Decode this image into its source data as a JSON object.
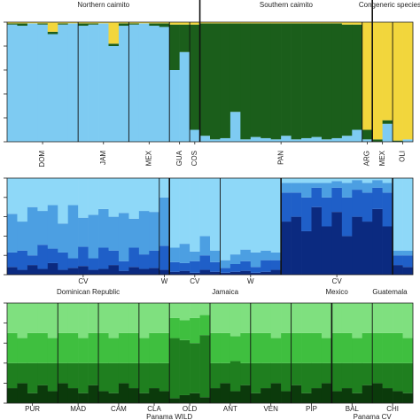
{
  "chart_data": [
    {
      "type": "bar",
      "stacked": true,
      "ylim": [
        0,
        1
      ],
      "yticks": [
        0,
        0.2,
        0.4,
        0.6,
        0.8,
        1
      ],
      "categories": [
        "DOM",
        "DOM",
        "DOM",
        "DOM",
        "DOM",
        "DOM",
        "DOM",
        "JAM",
        "JAM",
        "JAM",
        "JAM",
        "JAM",
        "MEX",
        "MEX",
        "MEX",
        "MEX",
        "GUA",
        "GUA",
        "COS",
        "PAN",
        "PAN",
        "PAN",
        "PAN",
        "PAN",
        "PAN",
        "PAN",
        "PAN",
        "PAN",
        "PAN",
        "PAN",
        "PAN",
        "PAN",
        "PAN",
        "PAN",
        "PAN",
        "ARG",
        "MEX",
        "MEX",
        "OLI",
        "OLI"
      ],
      "groups": [
        "Northern caimito",
        "Northern caimito",
        "Northern caimito",
        "Northern caimito",
        "Northern caimito",
        "Northern caimito",
        "Northern caimito",
        "Northern caimito",
        "Northern caimito",
        "Northern caimito",
        "Northern caimito",
        "Northern caimito",
        "Northern caimito",
        "Northern caimito",
        "Northern caimito",
        "Northern caimito",
        "Northern caimito",
        "Northern caimito",
        "Northern caimito",
        "Southern caimito",
        "Southern caimito",
        "Southern caimito",
        "Southern caimito",
        "Southern caimito",
        "Southern caimito",
        "Southern caimito",
        "Southern caimito",
        "Southern caimito",
        "Southern caimito",
        "Southern caimito",
        "Southern caimito",
        "Southern caimito",
        "Southern caimito",
        "Southern caimito",
        "Southern caimito",
        "Southern caimito",
        "Congeneric species",
        "Congeneric species",
        "Congeneric species",
        "Congeneric species"
      ],
      "series": [
        {
          "color": "#7ecbf2",
          "values": [
            0.98,
            0.97,
            0.99,
            0.98,
            0.9,
            0.98,
            0.99,
            0.97,
            0.98,
            0.99,
            0.8,
            0.97,
            0.98,
            0.99,
            0.97,
            0.96,
            0.6,
            0.75,
            0.1,
            0.05,
            0.02,
            0.03,
            0.25,
            0.02,
            0.04,
            0.03,
            0.02,
            0.05,
            0.02,
            0.03,
            0.04,
            0.02,
            0.03,
            0.05,
            0.1,
            0.02,
            0,
            0.15,
            0,
            0.02
          ]
        },
        {
          "color": "#1b5e1b",
          "values": [
            0.01,
            0.02,
            0,
            0.01,
            0.02,
            0.01,
            0,
            0.02,
            0.01,
            0,
            0.02,
            0.02,
            0.01,
            0,
            0.02,
            0.03,
            0.38,
            0.23,
            0.88,
            0.94,
            0.97,
            0.96,
            0.74,
            0.97,
            0.95,
            0.96,
            0.97,
            0.94,
            0.97,
            0.96,
            0.95,
            0.97,
            0.96,
            0.93,
            0.88,
            0.08,
            0.02,
            0.03,
            0.01,
            0
          ]
        },
        {
          "color": "#f2d63c",
          "values": [
            0.01,
            0.01,
            0.01,
            0.01,
            0.08,
            0.01,
            0.01,
            0.01,
            0.01,
            0.01,
            0.18,
            0.01,
            0.01,
            0.01,
            0.01,
            0.01,
            0.02,
            0.02,
            0.02,
            0.01,
            0.01,
            0.01,
            0.01,
            0.01,
            0.01,
            0.01,
            0.01,
            0.01,
            0.01,
            0.01,
            0.01,
            0.01,
            0.01,
            0.02,
            0.02,
            0.9,
            0.98,
            0.82,
            0.99,
            0.98
          ]
        }
      ]
    },
    {
      "type": "bar",
      "stacked": true,
      "ylim": [
        0,
        1
      ],
      "yticks": [
        0,
        0.2,
        0.4,
        0.6,
        0.8,
        1
      ],
      "categories": [
        "CV",
        "CV",
        "CV",
        "CV",
        "CV",
        "CV",
        "CV",
        "CV",
        "CV",
        "CV",
        "CV",
        "CV",
        "CV",
        "CV",
        "CV",
        "W",
        "CV",
        "CV",
        "CV",
        "CV",
        "CV",
        "W",
        "W",
        "W",
        "W",
        "W",
        "W",
        "CV",
        "CV",
        "CV",
        "CV",
        "CV",
        "CV",
        "CV",
        "CV",
        "CV",
        "CV",
        "CV",
        null,
        null
      ],
      "groups": [
        "Dominican Republic",
        "Dominican Republic",
        "Dominican Republic",
        "Dominican Republic",
        "Dominican Republic",
        "Dominican Republic",
        "Dominican Republic",
        "Dominican Republic",
        "Dominican Republic",
        "Dominican Republic",
        "Dominican Republic",
        "Dominican Republic",
        "Dominican Republic",
        "Dominican Republic",
        "Dominican Republic",
        "Dominican Republic",
        "Jamaica",
        "Jamaica",
        "Jamaica",
        "Jamaica",
        "Jamaica",
        "Jamaica",
        "Jamaica",
        "Jamaica",
        "Jamaica",
        "Jamaica",
        "Jamaica",
        "Mexico",
        "Mexico",
        "Mexico",
        "Mexico",
        "Mexico",
        "Mexico",
        "Mexico",
        "Mexico",
        "Mexico",
        "Mexico",
        "Mexico",
        "Guatemala",
        "Guatemala"
      ],
      "series": [
        {
          "color": "#0b2a80",
          "values": [
            0.08,
            0.05,
            0.1,
            0.06,
            0.12,
            0.05,
            0.07,
            0.09,
            0.05,
            0.06,
            0.1,
            0.04,
            0.08,
            0.06,
            0.07,
            0.05,
            0.03,
            0.04,
            0.02,
            0.05,
            0.03,
            0.02,
            0.03,
            0.04,
            0.02,
            0.03,
            0.05,
            0.55,
            0.6,
            0.45,
            0.7,
            0.5,
            0.65,
            0.4,
            0.6,
            0.55,
            0.68,
            0.5,
            0.1,
            0.08
          ]
        },
        {
          "color": "#1f5fc8",
          "values": [
            0.15,
            0.2,
            0.1,
            0.25,
            0.15,
            0.18,
            0.1,
            0.2,
            0.12,
            0.22,
            0.15,
            0.1,
            0.2,
            0.15,
            0.18,
            0.25,
            0.1,
            0.08,
            0.12,
            0.15,
            0.1,
            0.05,
            0.08,
            0.1,
            0.06,
            0.12,
            0.1,
            0.3,
            0.25,
            0.35,
            0.2,
            0.3,
            0.25,
            0.4,
            0.28,
            0.3,
            0.22,
            0.35,
            0.1,
            0.12
          ]
        },
        {
          "color": "#4c9fe2",
          "values": [
            0.4,
            0.3,
            0.5,
            0.35,
            0.45,
            0.3,
            0.55,
            0.3,
            0.45,
            0.4,
            0.35,
            0.5,
            0.3,
            0.45,
            0.4,
            0.5,
            0.15,
            0.2,
            0.1,
            0.2,
            0.12,
            0.08,
            0.1,
            0.12,
            0.15,
            0.1,
            0.08,
            0.1,
            0.1,
            0.15,
            0.05,
            0.15,
            0.07,
            0.15,
            0.1,
            0.1,
            0.08,
            0.1,
            0.05,
            0.05
          ]
        },
        {
          "color": "#8ed8f8",
          "values": [
            0.37,
            0.45,
            0.3,
            0.34,
            0.28,
            0.47,
            0.28,
            0.41,
            0.38,
            0.32,
            0.4,
            0.36,
            0.42,
            0.34,
            0.35,
            0.2,
            0.72,
            0.68,
            0.76,
            0.6,
            0.75,
            0.85,
            0.79,
            0.74,
            0.77,
            0.75,
            0.77,
            0.05,
            0.05,
            0.05,
            0.05,
            0.05,
            0.03,
            0.05,
            0.02,
            0.05,
            0.02,
            0.05,
            0.75,
            0.75
          ]
        }
      ]
    },
    {
      "type": "bar",
      "stacked": true,
      "ylim": [
        0,
        1
      ],
      "yticks": [
        0,
        0.2,
        0.4,
        0.6,
        0.8,
        1
      ],
      "categories": [
        "PUR",
        "PUR",
        "PUR",
        "PUR",
        "PUR",
        "MAD",
        "MAD",
        "MAD",
        "MAD",
        "CAM",
        "CAM",
        "CAM",
        "CAM",
        "CLA",
        "CLA",
        "CLA",
        "OLD",
        "OLD",
        "OLD",
        "OLD",
        "ANT",
        "ANT",
        "ANT",
        "ANT",
        "VEN",
        "VEN",
        "VEN",
        "VEN",
        "PIP",
        "PIP",
        "PIP",
        "PIP",
        "BAL",
        "BAL",
        "BAL",
        "BAL",
        "CHI",
        "CHI",
        "CHI",
        "CHI"
      ],
      "groups": [
        "Panama WILD",
        "Panama WILD",
        "Panama WILD",
        "Panama WILD",
        "Panama WILD",
        "Panama WILD",
        "Panama WILD",
        "Panama WILD",
        "Panama WILD",
        "Panama WILD",
        "Panama WILD",
        "Panama WILD",
        "Panama WILD",
        "Panama WILD",
        "Panama WILD",
        "Panama WILD",
        "Panama WILD",
        "Panama WILD",
        "Panama WILD",
        "Panama WILD",
        "Panama WILD",
        "Panama WILD",
        "Panama WILD",
        "Panama WILD",
        "Panama WILD",
        "Panama WILD",
        "Panama WILD",
        "Panama WILD",
        "Panama WILD",
        "Panama WILD",
        "Panama WILD",
        "Panama WILD",
        "Panama CV",
        "Panama CV",
        "Panama CV",
        "Panama CV",
        "Panama CV",
        "Panama CV",
        "Panama CV",
        "Panama CV"
      ],
      "series": [
        {
          "color": "#0b3a0b",
          "values": [
            0.15,
            0.2,
            0.1,
            0.18,
            0.12,
            0.2,
            0.15,
            0.1,
            0.18,
            0.12,
            0.1,
            0.2,
            0.15,
            0.1,
            0.15,
            0.12,
            0.05,
            0.08,
            0.1,
            0.06,
            0.15,
            0.2,
            0.12,
            0.18,
            0.1,
            0.15,
            0.2,
            0.12,
            0.18,
            0.1,
            0.15,
            0.2,
            0.12,
            0.15,
            0.1,
            0.18,
            0.2,
            0.15,
            0.12,
            0.1
          ]
        },
        {
          "color": "#1f7f1f",
          "values": [
            0.25,
            0.2,
            0.3,
            0.22,
            0.28,
            0.2,
            0.25,
            0.3,
            0.22,
            0.28,
            0.3,
            0.2,
            0.25,
            0.3,
            0.25,
            0.28,
            0.6,
            0.55,
            0.5,
            0.62,
            0.25,
            0.2,
            0.3,
            0.22,
            0.3,
            0.25,
            0.2,
            0.28,
            0.22,
            0.3,
            0.25,
            0.2,
            0.28,
            0.25,
            0.3,
            0.22,
            0.2,
            0.25,
            0.28,
            0.3
          ]
        },
        {
          "color": "#3fbf3f",
          "values": [
            0.3,
            0.25,
            0.3,
            0.3,
            0.25,
            0.3,
            0.3,
            0.25,
            0.3,
            0.3,
            0.25,
            0.3,
            0.3,
            0.25,
            0.3,
            0.3,
            0.2,
            0.2,
            0.25,
            0.2,
            0.3,
            0.3,
            0.25,
            0.3,
            0.3,
            0.3,
            0.25,
            0.3,
            0.3,
            0.3,
            0.3,
            0.25,
            0.3,
            0.3,
            0.25,
            0.3,
            0.3,
            0.3,
            0.3,
            0.25
          ]
        },
        {
          "color": "#7fe07f",
          "values": [
            0.3,
            0.35,
            0.3,
            0.3,
            0.35,
            0.3,
            0.3,
            0.35,
            0.3,
            0.3,
            0.35,
            0.3,
            0.3,
            0.35,
            0.3,
            0.3,
            0.15,
            0.17,
            0.15,
            0.12,
            0.3,
            0.3,
            0.33,
            0.3,
            0.3,
            0.3,
            0.35,
            0.3,
            0.3,
            0.3,
            0.3,
            0.35,
            0.3,
            0.3,
            0.35,
            0.3,
            0.3,
            0.3,
            0.3,
            0.35
          ]
        }
      ]
    }
  ]
}
